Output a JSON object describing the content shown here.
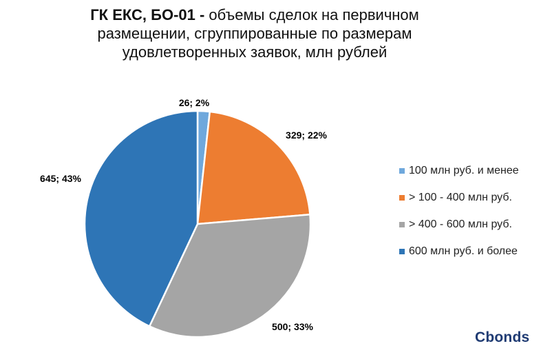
{
  "title_bold": "ГК ЕКС, БО-01 -",
  "title_line1_rest": " объемы сделок на первичном",
  "title_line2": "размещении, сгруппированные по размерам",
  "title_line3": "удовлетворенных заявок, млн рублей",
  "logo_text": "Cbonds",
  "chart_data": {
    "type": "pie",
    "title": "ГК ЕКС, БО-01 - объемы сделок на первичном размещении, сгруппированные по размерам удовлетворенных заявок, млн рублей",
    "categories": [
      "100 млн руб. и менее",
      "> 100 - 400 млн руб.",
      "> 400 - 600 млн руб.",
      "600 млн руб. и более"
    ],
    "values": [
      26,
      329,
      500,
      645
    ],
    "percent": [
      2,
      22,
      33,
      43
    ],
    "labels": [
      "26; 2%",
      "329; 22%",
      "500; 33%",
      "645; 43%"
    ],
    "colors": [
      "#6fa8dc",
      "#ed7d31",
      "#a5a5a5",
      "#2e75b6"
    ],
    "legend_position": "right"
  }
}
